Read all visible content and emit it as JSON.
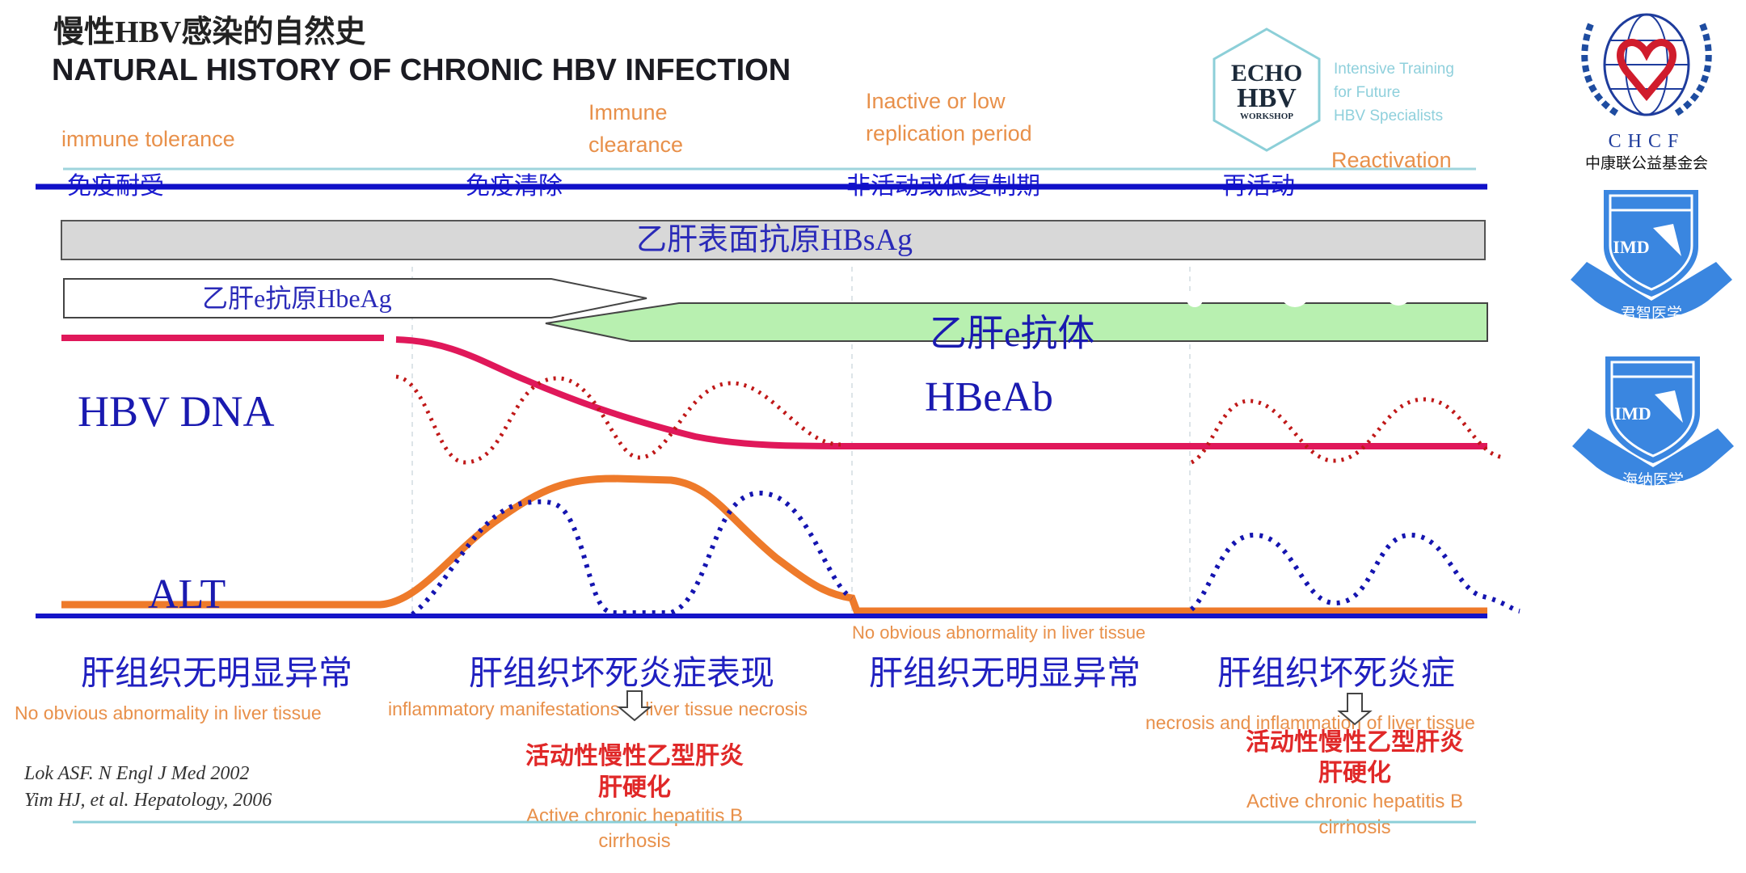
{
  "header": {
    "title_cn": "慢性HBV感染的自然史",
    "title_en": "NATURAL HISTORY OF CHRONIC HBV INFECTION"
  },
  "phases": [
    {
      "en": "immune tolerance",
      "cn": "免疫耐受"
    },
    {
      "en_line1": "Immune",
      "en_line2": "clearance",
      "cn": "免疫清除"
    },
    {
      "en_line1": "Inactive or low",
      "en_line2": "replication period",
      "cn": "非活动或低复制期"
    },
    {
      "en": "Reactivation",
      "cn": "再活动"
    }
  ],
  "bars": {
    "hbsag": "乙肝表面抗原HBsAg",
    "hbeag": "乙肝e抗原HbeAg",
    "anti_hbe_cn": "乙肝e抗体",
    "anti_hbe_en": "HBeAb"
  },
  "curves": {
    "hbv_dna": "HBV DNA",
    "alt": "ALT",
    "baseline_note": "No obvious abnormality in liver tissue"
  },
  "histology": [
    {
      "cn": "肝组织无明显异常",
      "en": "No obvious abnormality in liver tissue"
    },
    {
      "cn": "肝组织坏死炎症表现",
      "en": "inflammatory manifestations of liver tissue necrosis"
    },
    {
      "cn": "肝组织无明显异常"
    },
    {
      "cn": "肝组织坏死炎症",
      "en": "necrosis and inflammation of liver tissue"
    }
  ],
  "outcomes": [
    {
      "cn1": "活动性慢性乙型肝炎",
      "cn2": "肝硬化",
      "en1": "Active chronic hepatitis B",
      "en2": "cirrhosis"
    },
    {
      "cn1": "活动性慢性乙型肝炎",
      "cn2": "肝硬化",
      "en1": "Active chronic hepatitis B",
      "en2": "cirrhosis"
    }
  ],
  "references": [
    "Lok ASF. N Engl J Med 2002",
    "Yim HJ, et al. Hepatology, 2006"
  ],
  "logos": {
    "echo": {
      "line1": "ECHO",
      "line2": "HBV",
      "line3": "WORKSHOP",
      "tag1": "Intensive Training",
      "tag2": "for Future",
      "tag3": "HBV Specialists"
    },
    "chcf": {
      "abbr": "CHCF",
      "name": "中康联公益基金会"
    },
    "imd1": {
      "mark": "IMD",
      "name": "君智医学"
    },
    "imd2": {
      "mark": "IMD",
      "name": "海纳医学"
    }
  },
  "colors": {
    "phase_blue": "#1010c8",
    "label_orange": "#e8904a",
    "dna_red": "#e0185a",
    "alt_orange": "#ee7a2a",
    "hbsag_gray": "#d8d8d8",
    "anti_hbe_green": "#b8f0b0",
    "outcome_red": "#e02828",
    "logo_blue": "#3a86e0"
  }
}
